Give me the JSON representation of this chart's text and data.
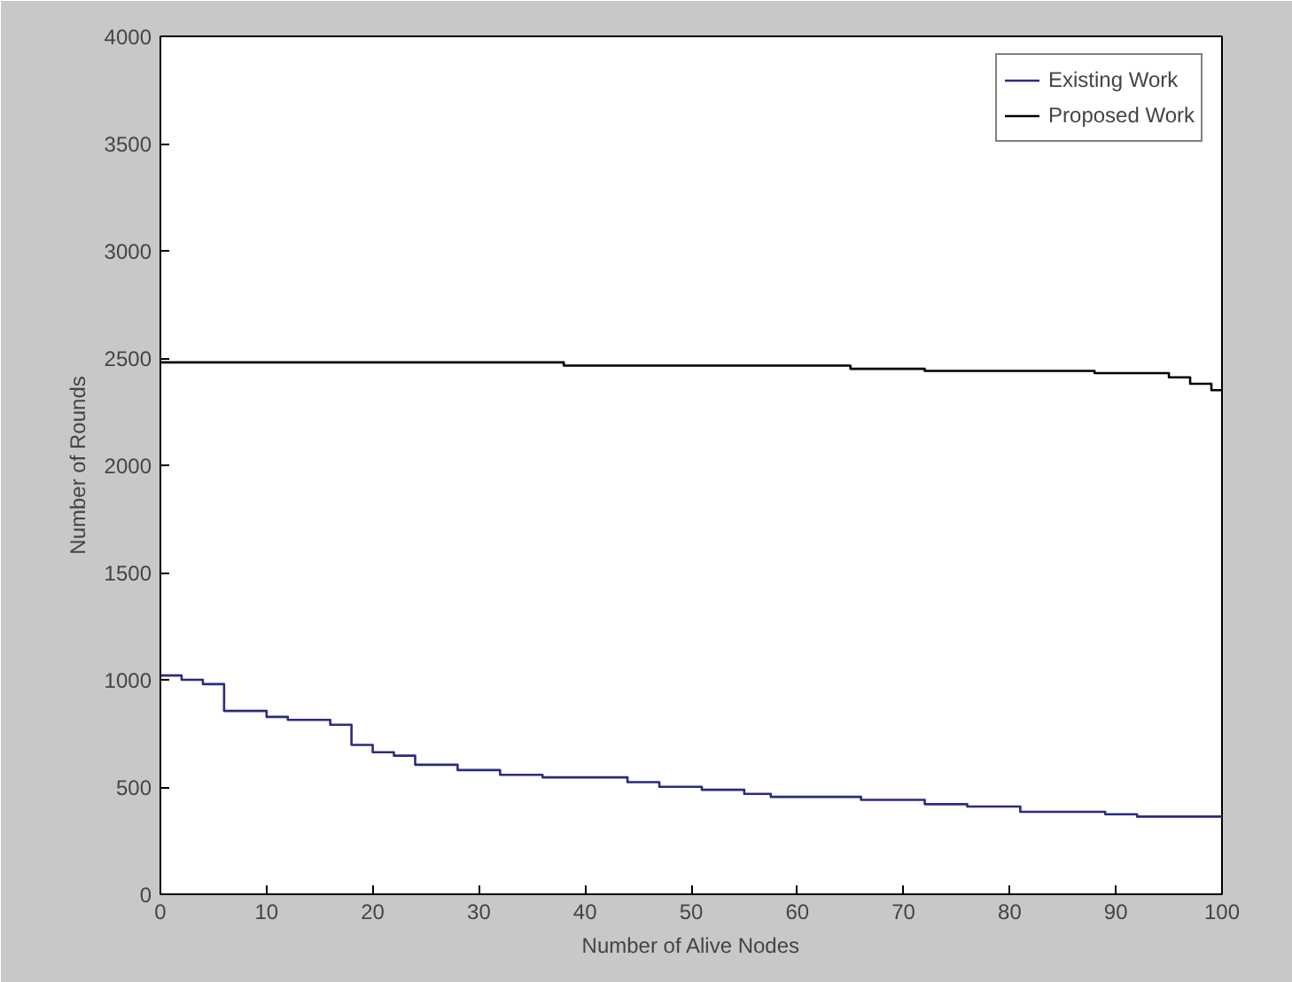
{
  "chart_data": {
    "type": "step",
    "xlabel": "Number of Alive Nodes",
    "ylabel": "Number of Rounds",
    "xlim": [
      0,
      100
    ],
    "ylim": [
      0,
      4000
    ],
    "xticks": [
      0,
      10,
      20,
      30,
      40,
      50,
      60,
      70,
      80,
      90,
      100
    ],
    "yticks": [
      0,
      500,
      1000,
      1500,
      2000,
      2500,
      3000,
      3500,
      4000
    ],
    "grid": false,
    "legend": "top right",
    "line_style": "solid",
    "marker": "none",
    "series": [
      {
        "name": "Existing Work",
        "color": "#2b2b80",
        "x": [
          0,
          2,
          4,
          6,
          10,
          12,
          16,
          18,
          20,
          22,
          24,
          28,
          32,
          36,
          44,
          47,
          51,
          55,
          57.5,
          66,
          72,
          76,
          81,
          89,
          92,
          100
        ],
        "values": [
          1020,
          1000,
          980,
          855,
          827,
          813,
          790,
          696,
          662,
          646,
          604,
          579,
          557,
          545,
          523,
          501,
          487,
          468,
          454,
          440,
          420,
          409,
          384,
          373,
          362,
          362
        ]
      },
      {
        "name": "Proposed Work",
        "color": "#000000",
        "x": [
          0,
          38,
          65,
          72,
          88,
          95,
          97,
          99,
          100
        ],
        "values": [
          2480,
          2465,
          2450,
          2440,
          2430,
          2410,
          2380,
          2350,
          2350
        ]
      }
    ]
  }
}
